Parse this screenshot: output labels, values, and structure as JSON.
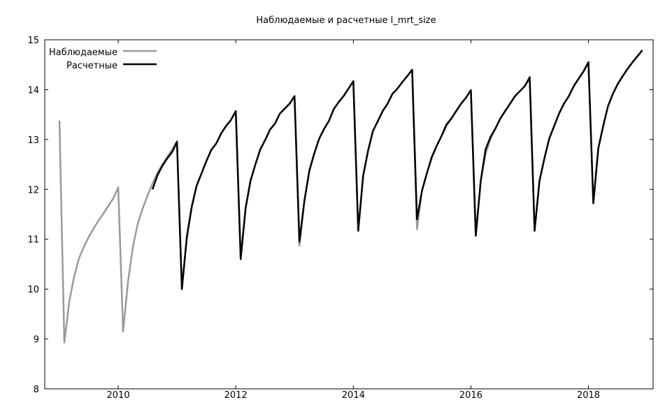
{
  "chart_data": {
    "type": "line",
    "title": "Наблюдаемые и расчетные l_mrt_size",
    "xlabel": "",
    "ylabel": "",
    "xlim": [
      2008.75,
      2019.1
    ],
    "ylim": [
      8,
      15
    ],
    "x_ticks": [
      2010,
      2012,
      2014,
      2016,
      2018
    ],
    "y_ticks": [
      8,
      9,
      10,
      11,
      12,
      13,
      14,
      15
    ],
    "grid": false,
    "legend_position": "top-left",
    "series": [
      {
        "name": "Наблюдаемые",
        "color": "#999999",
        "x": [
          2009.0,
          2009.083,
          2009.167,
          2009.25,
          2009.333,
          2009.417,
          2009.5,
          2009.583,
          2009.667,
          2009.75,
          2009.833,
          2009.917,
          2010.0,
          2010.083,
          2010.167,
          2010.25,
          2010.333,
          2010.417,
          2010.5,
          2010.583,
          2010.667,
          2010.75,
          2010.833,
          2010.917,
          2011.0,
          2011.083,
          2011.167,
          2011.25,
          2011.333,
          2011.417,
          2011.5,
          2011.583,
          2011.667,
          2011.75,
          2011.833,
          2011.917,
          2012.0,
          2012.083,
          2012.167,
          2012.25,
          2012.333,
          2012.417,
          2012.5,
          2012.583,
          2012.667,
          2012.75,
          2012.833,
          2012.917,
          2013.0,
          2013.083,
          2013.167,
          2013.25,
          2013.333,
          2013.417,
          2013.5,
          2013.583,
          2013.667,
          2013.75,
          2013.833,
          2013.917,
          2014.0,
          2014.083,
          2014.167,
          2014.25,
          2014.333,
          2014.417,
          2014.5,
          2014.583,
          2014.667,
          2014.75,
          2014.833,
          2014.917,
          2015.0,
          2015.083,
          2015.167,
          2015.25,
          2015.333,
          2015.417,
          2015.5,
          2015.583,
          2015.667,
          2015.75,
          2015.833,
          2015.917,
          2016.0,
          2016.083,
          2016.167,
          2016.25,
          2016.333,
          2016.417,
          2016.5,
          2016.583,
          2016.667,
          2016.75,
          2016.833,
          2016.917,
          2017.0,
          2017.083,
          2017.167,
          2017.25,
          2017.333,
          2017.417,
          2017.5,
          2017.583,
          2017.667,
          2017.75,
          2017.833,
          2017.917,
          2018.0,
          2018.083,
          2018.167,
          2018.25,
          2018.333,
          2018.417,
          2018.5,
          2018.583,
          2018.667,
          2018.75,
          2018.833,
          2018.917
        ],
        "values": [
          13.38,
          8.93,
          9.75,
          10.25,
          10.62,
          10.85,
          11.05,
          11.22,
          11.38,
          11.52,
          11.67,
          11.82,
          12.04,
          9.15,
          10.15,
          10.85,
          11.32,
          11.62,
          11.88,
          12.12,
          12.33,
          12.5,
          12.65,
          12.8,
          12.97,
          10.0,
          11.02,
          11.62,
          12.07,
          12.32,
          12.57,
          12.79,
          12.92,
          13.12,
          13.27,
          13.39,
          13.57,
          10.62,
          11.62,
          12.17,
          12.5,
          12.8,
          12.99,
          13.2,
          13.32,
          13.52,
          13.62,
          13.72,
          13.87,
          10.87,
          11.77,
          12.37,
          12.71,
          13.01,
          13.21,
          13.37,
          13.61,
          13.75,
          13.87,
          14.02,
          14.17,
          11.17,
          12.27,
          12.77,
          13.17,
          13.37,
          13.57,
          13.72,
          13.92,
          14.02,
          14.15,
          14.27,
          14.4,
          11.2,
          11.97,
          12.32,
          12.62,
          12.87,
          13.07,
          13.27,
          13.42,
          13.57,
          13.72,
          13.84,
          13.99,
          11.07,
          12.17,
          12.71,
          13.01,
          13.22,
          13.42,
          13.57,
          13.72,
          13.87,
          13.97,
          14.07,
          14.22,
          11.17,
          12.17,
          12.62,
          13.02,
          13.27,
          13.52,
          13.72,
          13.87,
          14.07,
          14.22,
          14.37,
          14.55,
          11.72,
          12.82,
          13.27,
          13.67,
          13.92,
          14.12,
          14.27,
          14.42,
          14.55,
          14.67,
          14.79
        ]
      },
      {
        "name": "Расчетные",
        "color": "#000000",
        "x": [
          2010.583,
          2010.667,
          2010.75,
          2010.833,
          2010.917,
          2011.0,
          2011.083,
          2011.167,
          2011.25,
          2011.333,
          2011.417,
          2011.5,
          2011.583,
          2011.667,
          2011.75,
          2011.833,
          2011.917,
          2012.0,
          2012.083,
          2012.167,
          2012.25,
          2012.333,
          2012.417,
          2012.5,
          2012.583,
          2012.667,
          2012.75,
          2012.833,
          2012.917,
          2013.0,
          2013.083,
          2013.167,
          2013.25,
          2013.333,
          2013.417,
          2013.5,
          2013.583,
          2013.667,
          2013.75,
          2013.833,
          2013.917,
          2014.0,
          2014.083,
          2014.167,
          2014.25,
          2014.333,
          2014.417,
          2014.5,
          2014.583,
          2014.667,
          2014.75,
          2014.833,
          2014.917,
          2015.0,
          2015.083,
          2015.167,
          2015.25,
          2015.333,
          2015.417,
          2015.5,
          2015.583,
          2015.667,
          2015.75,
          2015.833,
          2015.917,
          2016.0,
          2016.083,
          2016.167,
          2016.25,
          2016.333,
          2016.417,
          2016.5,
          2016.583,
          2016.667,
          2016.75,
          2016.833,
          2016.917,
          2017.0,
          2017.083,
          2017.167,
          2017.25,
          2017.333,
          2017.417,
          2017.5,
          2017.583,
          2017.667,
          2017.75,
          2017.833,
          2017.917,
          2018.0,
          2018.083,
          2018.167,
          2018.25,
          2018.333,
          2018.417,
          2018.5,
          2018.583,
          2018.667,
          2018.75,
          2018.833,
          2018.917
        ],
        "values": [
          12.0,
          12.28,
          12.47,
          12.62,
          12.75,
          12.95,
          10.0,
          11.05,
          11.65,
          12.07,
          12.32,
          12.57,
          12.79,
          12.92,
          13.12,
          13.27,
          13.39,
          13.57,
          10.6,
          11.62,
          12.17,
          12.5,
          12.8,
          12.99,
          13.2,
          13.32,
          13.52,
          13.62,
          13.72,
          13.87,
          10.95,
          11.77,
          12.37,
          12.71,
          13.01,
          13.21,
          13.37,
          13.61,
          13.75,
          13.87,
          14.02,
          14.17,
          11.17,
          12.27,
          12.77,
          13.17,
          13.37,
          13.57,
          13.72,
          13.92,
          14.02,
          14.15,
          14.27,
          14.4,
          11.4,
          11.97,
          12.32,
          12.65,
          12.87,
          13.07,
          13.3,
          13.42,
          13.57,
          13.72,
          13.84,
          13.99,
          11.07,
          12.17,
          12.8,
          13.05,
          13.22,
          13.42,
          13.57,
          13.72,
          13.87,
          13.97,
          14.07,
          14.25,
          11.17,
          12.17,
          12.62,
          13.02,
          13.27,
          13.52,
          13.72,
          13.87,
          14.07,
          14.22,
          14.37,
          14.55,
          11.72,
          12.82,
          13.27,
          13.67,
          13.92,
          14.12,
          14.27,
          14.42,
          14.55,
          14.67,
          14.79
        ]
      }
    ]
  }
}
